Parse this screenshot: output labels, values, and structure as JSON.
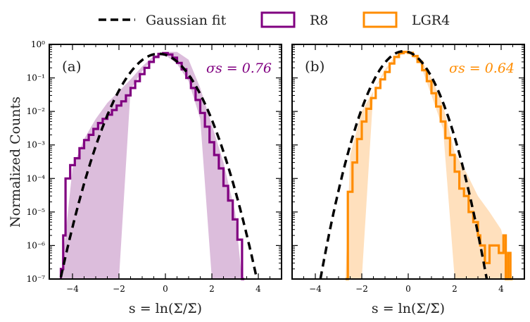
{
  "legend": {
    "fit_label": "Gaussian fit",
    "r8_label": "R8",
    "lgr4_label": "LGR4"
  },
  "colors": {
    "r8": "#800080",
    "r8_band": "#dcbddc",
    "lgr4": "#ff8c00",
    "lgr4_band": "#ffe0bd",
    "fit": "#000000"
  },
  "chart_data": [
    {
      "type": "histogram",
      "panel_label": "(a)",
      "sigma_label": "σs = 0.76",
      "sigma": 0.76,
      "xlabel": "s = ln(Σ/Σ̄)",
      "ylabel": "Normalized Counts",
      "xlim": [
        -5,
        5
      ],
      "ylim": [
        1e-07,
        1
      ],
      "yscale": "log",
      "xticks": [
        -4,
        -2,
        0,
        2,
        4
      ],
      "yticks": [
        "10⁻⁷",
        "10⁻⁶",
        "10⁻⁵",
        "10⁻⁴",
        "10⁻³",
        "10⁻²",
        "10⁻¹",
        "10⁰"
      ],
      "series": [
        {
          "name": "R8",
          "style": "step",
          "bins": [
            [
              -4.5,
              2e-07
            ],
            [
              -4.4,
              2e-06
            ],
            [
              -4.3,
              0.0001
            ],
            [
              -4.1,
              0.00025
            ],
            [
              -3.9,
              0.0004
            ],
            [
              -3.7,
              0.0008
            ],
            [
              -3.5,
              0.0014
            ],
            [
              -3.3,
              0.002
            ],
            [
              -3.1,
              0.003
            ],
            [
              -2.9,
              0.0045
            ],
            [
              -2.7,
              0.006
            ],
            [
              -2.5,
              0.008
            ],
            [
              -2.3,
              0.011
            ],
            [
              -2.1,
              0.015
            ],
            [
              -1.9,
              0.02
            ],
            [
              -1.7,
              0.03
            ],
            [
              -1.5,
              0.05
            ],
            [
              -1.3,
              0.08
            ],
            [
              -1.1,
              0.13
            ],
            [
              -0.9,
              0.2
            ],
            [
              -0.7,
              0.3
            ],
            [
              -0.5,
              0.42
            ],
            [
              -0.3,
              0.52
            ],
            [
              -0.1,
              0.55
            ],
            [
              0.1,
              0.5
            ],
            [
              0.3,
              0.4
            ],
            [
              0.5,
              0.28
            ],
            [
              0.7,
              0.18
            ],
            [
              0.9,
              0.1
            ],
            [
              1.1,
              0.05
            ],
            [
              1.3,
              0.022
            ],
            [
              1.5,
              0.009
            ],
            [
              1.7,
              0.0035
            ],
            [
              1.9,
              0.0012
            ],
            [
              2.1,
              0.0005
            ],
            [
              2.3,
              0.0002
            ],
            [
              2.5,
              6e-05
            ],
            [
              2.7,
              2.2e-05
            ],
            [
              2.9,
              6e-06
            ],
            [
              3.1,
              1.5e-06
            ],
            [
              3.3,
              1e-07
            ]
          ],
          "band": {
            "x": [
              -4.5,
              -4.0,
              -3.5,
              -3.0,
              -2.5,
              -2.0,
              -1.5,
              -1.0,
              -0.5,
              0.0,
              0.5,
              1.0,
              1.5,
              2.0,
              2.5,
              3.0,
              3.3
            ],
            "lower": [
              1e-07,
              1e-07,
              1e-07,
              1e-07,
              1e-07,
              1e-07,
              0.045,
              0.16,
              0.4,
              0.48,
              0.26,
              0.08,
              0.006,
              1e-07,
              1e-07,
              1e-07,
              1e-07
            ],
            "upper": [
              1e-07,
              0.0002,
              0.0015,
              0.006,
              0.018,
              0.04,
              0.09,
              0.22,
              0.45,
              0.6,
              0.6,
              0.35,
              0.05,
              0.004,
              0.0003,
              1e-05,
              1e-07
            ]
          }
        },
        {
          "name": "Gaussian fit",
          "style": "dashed",
          "sigma": 0.76,
          "mu": -0.29
        }
      ]
    },
    {
      "type": "histogram",
      "panel_label": "(b)",
      "sigma_label": "σs = 0.64",
      "sigma": 0.64,
      "xlabel": "s = ln(Σ/Σ̄)",
      "ylabel": "",
      "xlim": [
        -5,
        5
      ],
      "ylim": [
        1e-07,
        1
      ],
      "yscale": "log",
      "xticks": [
        -4,
        -2,
        0,
        2,
        4
      ],
      "series": [
        {
          "name": "LGR4",
          "style": "step",
          "bins": [
            [
              -2.7,
              1e-07
            ],
            [
              -2.6,
              4e-05
            ],
            [
              -2.4,
              0.0003
            ],
            [
              -2.2,
              0.0015
            ],
            [
              -2.0,
              0.005
            ],
            [
              -1.8,
              0.012
            ],
            [
              -1.6,
              0.025
            ],
            [
              -1.4,
              0.05
            ],
            [
              -1.2,
              0.09
            ],
            [
              -1.0,
              0.15
            ],
            [
              -0.8,
              0.27
            ],
            [
              -0.6,
              0.42
            ],
            [
              -0.4,
              0.55
            ],
            [
              -0.2,
              0.6
            ],
            [
              0.0,
              0.56
            ],
            [
              0.2,
              0.45
            ],
            [
              0.4,
              0.3
            ],
            [
              0.6,
              0.17
            ],
            [
              0.8,
              0.08
            ],
            [
              1.0,
              0.035
            ],
            [
              1.2,
              0.014
            ],
            [
              1.4,
              0.005
            ],
            [
              1.6,
              0.0016
            ],
            [
              1.8,
              0.0005
            ],
            [
              2.0,
              0.00016
            ],
            [
              2.2,
              5e-05
            ],
            [
              2.4,
              3e-05
            ],
            [
              2.6,
              1e-05
            ],
            [
              2.8,
              5e-06
            ],
            [
              3.0,
              2e-06
            ],
            [
              3.1,
              1e-06
            ],
            [
              3.3,
              3e-07
            ],
            [
              3.5,
              1e-06
            ],
            [
              3.7,
              1e-06
            ],
            [
              3.9,
              6e-07
            ],
            [
              4.1,
              2e-06
            ],
            [
              4.2,
              1e-07
            ],
            [
              4.3,
              6e-07
            ],
            [
              4.4,
              1e-07
            ]
          ],
          "band": {
            "x": [
              -2.7,
              -2.5,
              -2.0,
              -1.5,
              -1.0,
              -0.5,
              0.0,
              0.5,
              1.0,
              1.5,
              2.0,
              2.5,
              3.0,
              3.5,
              4.0,
              4.5
            ],
            "lower": [
              1e-07,
              1e-07,
              1e-07,
              0.04,
              0.14,
              0.45,
              0.55,
              0.28,
              0.03,
              0.003,
              1e-07,
              1e-07,
              1e-07,
              1e-07,
              1e-07,
              1e-07
            ],
            "upper": [
              1e-07,
              0.0005,
              0.01,
              0.04,
              0.18,
              0.5,
              0.65,
              0.4,
              0.1,
              0.015,
              0.0006,
              0.00015,
              3e-05,
              1e-05,
              3e-06,
              1e-07
            ]
          }
        },
        {
          "name": "Gaussian fit",
          "style": "dashed",
          "sigma": 0.64,
          "mu": -0.2
        }
      ]
    }
  ]
}
